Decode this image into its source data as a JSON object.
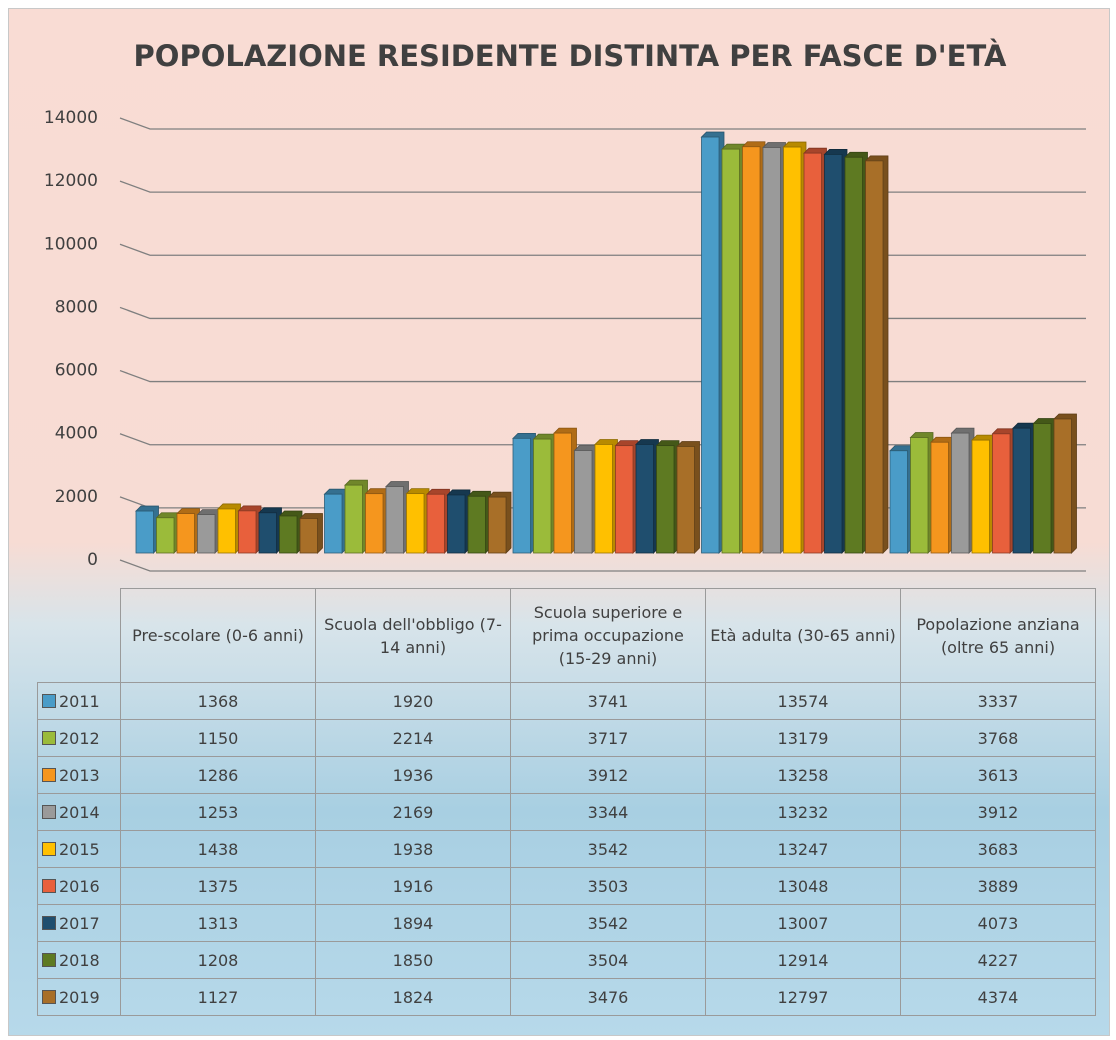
{
  "chart_data": {
    "type": "bar3d",
    "title": "POPOLAZIONE RESIDENTE DISTINTA PER FASCE D'ETÀ",
    "categories": [
      "Pre-scolare (0-6 anni)",
      "Scuola dell'obbligo (7-14 anni)",
      "Scuola superiore e prima occupazione (15-29 anni)",
      "Età adulta (30-65 anni)",
      "Popolazione anziana (oltre 65 anni)"
    ],
    "series": [
      {
        "name": "2011",
        "color": "#4a9cc8",
        "values": [
          1368,
          1920,
          3741,
          13574,
          3337
        ]
      },
      {
        "name": "2012",
        "color": "#9bbb3a",
        "values": [
          1150,
          2214,
          3717,
          13179,
          3768
        ]
      },
      {
        "name": "2013",
        "color": "#f5961e",
        "values": [
          1286,
          1936,
          3912,
          13258,
          3613
        ]
      },
      {
        "name": "2014",
        "color": "#9a9a9a",
        "values": [
          1253,
          2169,
          3344,
          13232,
          3912
        ]
      },
      {
        "name": "2015",
        "color": "#ffc000",
        "values": [
          1438,
          1938,
          3542,
          13247,
          3683
        ]
      },
      {
        "name": "2016",
        "color": "#e8603c",
        "values": [
          1375,
          1916,
          3503,
          13048,
          3889
        ]
      },
      {
        "name": "2017",
        "color": "#1f4e6e",
        "values": [
          1313,
          1894,
          3542,
          13007,
          4073
        ]
      },
      {
        "name": "2018",
        "color": "#5e7a22",
        "values": [
          1208,
          1850,
          3504,
          12914,
          4227
        ]
      },
      {
        "name": "2019",
        "color": "#a86f28",
        "values": [
          1127,
          1824,
          3476,
          12797,
          4374
        ]
      }
    ],
    "ylim": [
      0,
      14000
    ],
    "yticks": [
      0,
      2000,
      4000,
      6000,
      8000,
      10000,
      12000,
      14000
    ],
    "grid": true
  }
}
